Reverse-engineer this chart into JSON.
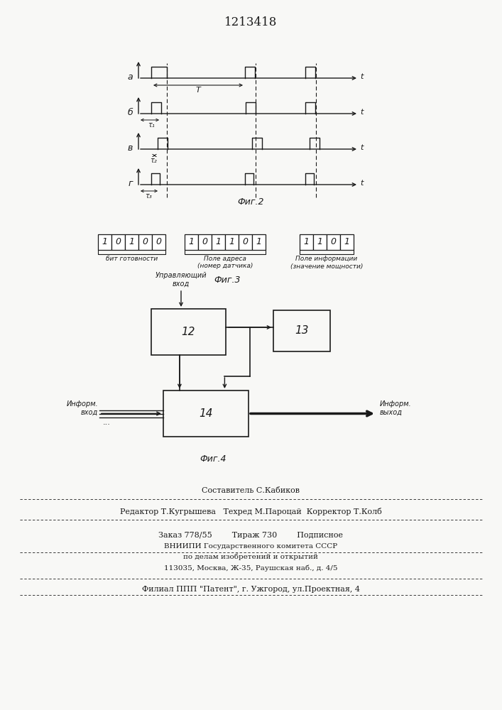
{
  "title": "1213418",
  "fig2_label": "Фиг.2",
  "fig3_label": "Фиг.3",
  "fig4_label": "Фиг.4",
  "fig3_bits_group1": [
    "1",
    "0",
    "1",
    "0",
    "0"
  ],
  "fig3_bits_group2": [
    "1",
    "0",
    "1",
    "1",
    "0",
    "1"
  ],
  "fig3_bits_group3": [
    "1",
    "1",
    "0",
    "1"
  ],
  "fig3_label1": "бит готовности",
  "fig3_label2": "Поле адреса\n(номер датчика)",
  "fig3_label3": "Поле информации\n(значение мощности)",
  "fig4_box12_label": "12",
  "fig4_box13_label": "13",
  "fig4_box14_label": "14",
  "fig4_label_upravl": "Управляющий\nвход",
  "fig4_label_inform_vhod": "Информ.\nвход",
  "fig4_label_inform_vyhod": "Информ.\nвыход",
  "footer_line1": "Составитель С.Кабиков",
  "footer_line2": "Редактор Т.Кугрышева   Техред М.Пароцай  Корректор Т.Колб",
  "footer_line3": "Заказ 778/55        Тираж 730        Подписное",
  "footer_line4": "ВНИИПИ Государственного комитета СССР",
  "footer_line5": "по делам изобретений и открытий",
  "footer_line6": "113035, Москва, Ж-35, Раушская наб., д. 4/5",
  "footer_line7": "Филиал ППП \"Патент\", г. Ужгород, ул.Проектная, 4",
  "bg_color": "#f8f8f6",
  "line_color": "#1a1a1a"
}
